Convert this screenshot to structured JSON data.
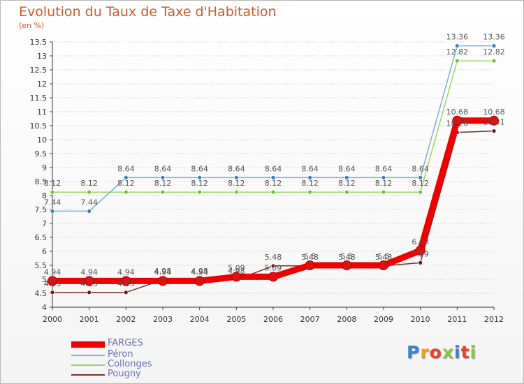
{
  "header": {
    "title": "Evolution du Taux de Taxe d'Habitation",
    "subtitle": "(en %)"
  },
  "logo": {
    "text": "Proxiti",
    "colors": [
      "#3a84c9",
      "#f0a020",
      "#e8402a",
      "#8cc63f",
      "#3a84c9",
      "#e8402a",
      "#8cc63f"
    ]
  },
  "chart_data": {
    "type": "line",
    "title": "Evolution du Taux de Taxe d'Habitation",
    "ylabel": "(en %)",
    "xlabel": "",
    "x": [
      "2000",
      "2001",
      "2002",
      "2003",
      "2004",
      "2005",
      "2006",
      "2007",
      "2008",
      "2009",
      "2010",
      "2011",
      "2012"
    ],
    "ylim": [
      4,
      13.5
    ],
    "yticks": [
      4,
      4.5,
      5,
      5.5,
      6,
      6.5,
      7,
      7.5,
      8,
      8.5,
      9,
      9.5,
      10,
      10.5,
      11,
      11.5,
      12,
      12.5,
      13,
      13.5
    ],
    "grid": "horizontal-dotted",
    "legend": "bottom-left",
    "series": [
      {
        "name": "Pougny",
        "color": "#7a2e2e",
        "marker": "#6b1a1a",
        "values": [
          4.53,
          4.53,
          4.53,
          4.98,
          4.98,
          4.98,
          5.48,
          5.48,
          5.48,
          5.48,
          5.59,
          10.26,
          10.31
        ],
        "labels": [
          "4.53",
          "4.53",
          "4.53",
          "4.98",
          "4.98",
          "4.98",
          "5.48",
          "5.48",
          "5.48",
          "5.48",
          "5.59",
          "10.26",
          "10.31"
        ]
      },
      {
        "name": "Collonges",
        "color": "#9cd46a",
        "marker": "#6cc23a",
        "values": [
          8.12,
          8.12,
          8.12,
          8.12,
          8.12,
          8.12,
          8.12,
          8.12,
          8.12,
          8.12,
          8.12,
          12.82,
          12.82
        ],
        "labels": [
          "8.12",
          "8.12",
          "8.12",
          "8.12",
          "8.12",
          "8.12",
          "8.12",
          "8.12",
          "8.12",
          "8.12",
          "8.12",
          "12.82",
          "12.82"
        ]
      },
      {
        "name": "Péron",
        "color": "#7ab0d8",
        "marker": "#3a7fc0",
        "values": [
          7.44,
          7.44,
          8.64,
          8.64,
          8.64,
          8.64,
          8.64,
          8.64,
          8.64,
          8.64,
          8.64,
          13.36,
          13.36
        ],
        "labels": [
          "7.44",
          "7.44",
          "8.64",
          "8.64",
          "8.64",
          "8.64",
          "8.64",
          "8.64",
          "8.64",
          "8.64",
          "8.64",
          "13.36",
          "13.36"
        ]
      },
      {
        "name": "FARGES",
        "color": "#ee0000",
        "marker": "#dd1111",
        "values": [
          4.94,
          4.94,
          4.94,
          4.94,
          4.94,
          5.09,
          5.09,
          5.5,
          5.5,
          5.5,
          6.03,
          10.68,
          10.68
        ],
        "labels": [
          "4.94",
          "4.94",
          "4.94",
          "4.94",
          "4.94",
          "5.09",
          "5.09",
          "5.5",
          "5.5",
          "5.5",
          "6.03",
          "10.68",
          "10.68"
        ]
      }
    ],
    "legend_order": [
      "FARGES",
      "Péron",
      "Collonges",
      "Pougny"
    ]
  }
}
